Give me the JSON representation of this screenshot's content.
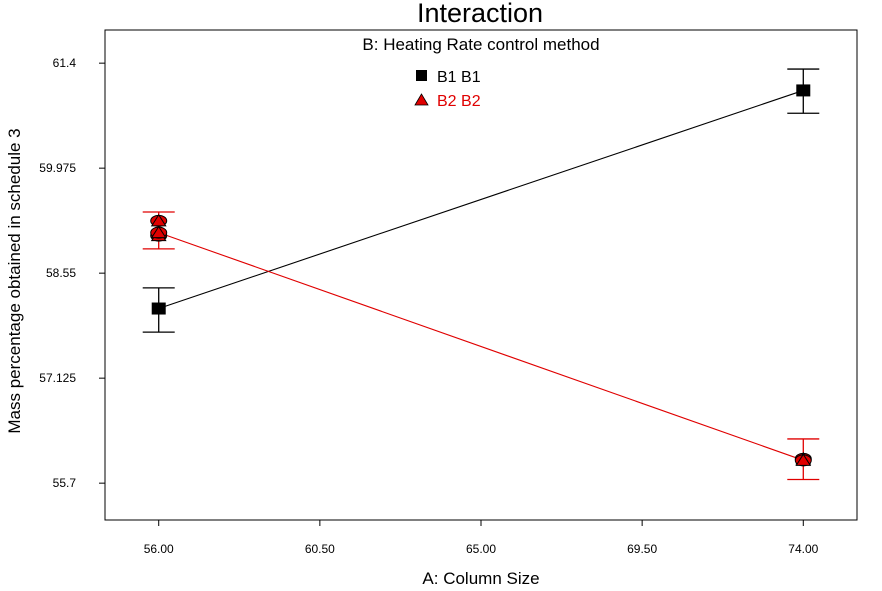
{
  "colors": {
    "B1": "#000000",
    "B2": "#e00000",
    "frame": "#000000",
    "background": "#ffffff"
  },
  "chart_data": {
    "type": "line",
    "title": "Interaction",
    "subtitle": "B: Heating Rate control method",
    "xlabel": "A: Column Size",
    "ylabel": "Mass percentage obtained in schedule 3",
    "x_ticks": [
      "56.00",
      "60.50",
      "65.00",
      "69.50",
      "74.00"
    ],
    "y_ticks": [
      "61.4",
      "59.975",
      "58.55",
      "57.125",
      "55.7"
    ],
    "xlim": [
      54.5,
      75.5
    ],
    "ylim": [
      55.2,
      61.85
    ],
    "grid": false,
    "legend_placement": "top-center",
    "series": [
      {
        "name": "B1 B1",
        "marker": "square",
        "x": [
          56.0,
          74.0
        ],
        "y": [
          58.07,
          61.03
        ],
        "error_low": [
          57.75,
          60.72
        ],
        "error_high": [
          58.35,
          61.32
        ]
      },
      {
        "name": "B2 B2",
        "marker": "triangle",
        "x": [
          56.0,
          74.0
        ],
        "y": [
          59.1,
          56.01
        ],
        "error_low": [
          58.88,
          55.75
        ],
        "error_high": [
          59.38,
          56.3
        ],
        "extra_points": [
          [
            56.0,
            59.26
          ],
          [
            56.0,
            59.06
          ],
          [
            74.0,
            56.03
          ]
        ]
      }
    ]
  }
}
